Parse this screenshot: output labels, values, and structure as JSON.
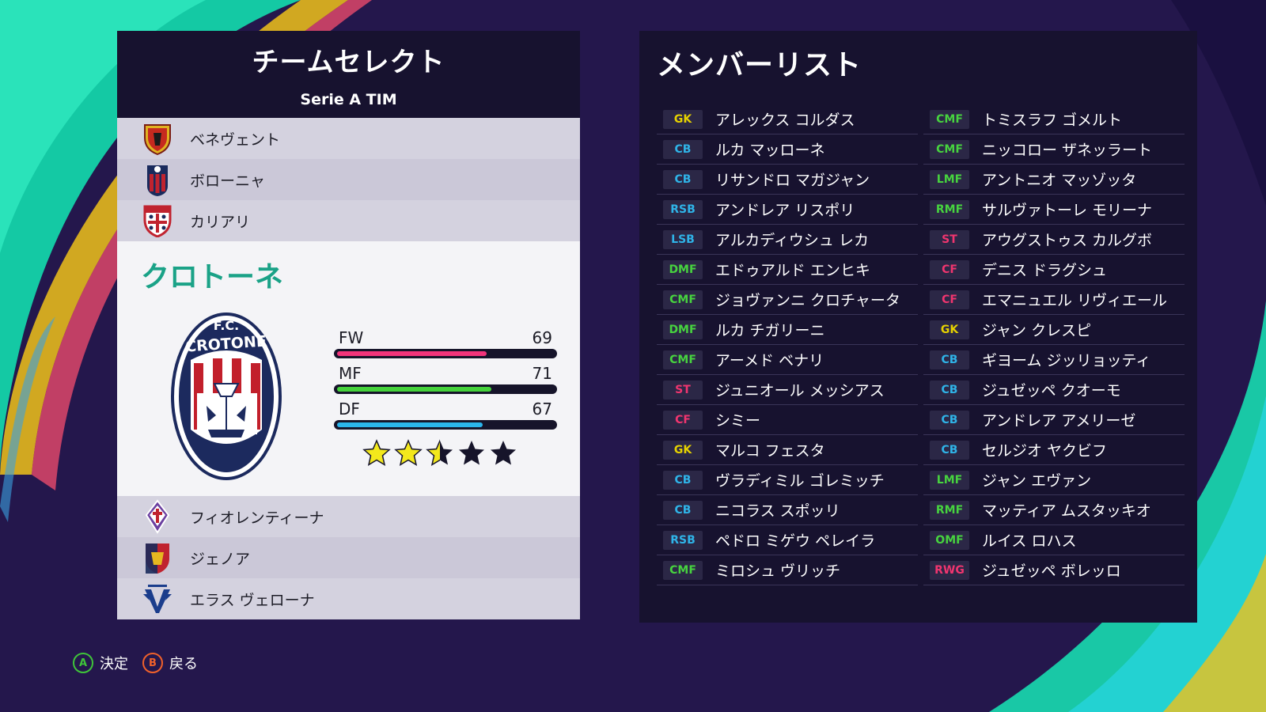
{
  "team_select": {
    "title": "チームセレクト",
    "league": "Serie A TIM",
    "teams_above": [
      {
        "name": "ベネヴェント",
        "crest": "benevento-crest-icon"
      },
      {
        "name": "ボローニャ",
        "crest": "bologna-crest-icon"
      },
      {
        "name": "カリアリ",
        "crest": "cagliari-crest-icon"
      }
    ],
    "selected": {
      "name": "クロトーネ",
      "crest": "crotone-crest-icon",
      "stats": [
        {
          "label": "FW",
          "value": 69,
          "color": "#f2347b"
        },
        {
          "label": "MF",
          "value": 71,
          "color": "#46d23c"
        },
        {
          "label": "DF",
          "value": 67,
          "color": "#2bb5ec"
        }
      ],
      "stars": 2.5,
      "stars_max": 5
    },
    "teams_below": [
      {
        "name": "フィオレンティーナ",
        "crest": "fiorentina-crest-icon"
      },
      {
        "name": "ジェノア",
        "crest": "genoa-crest-icon"
      },
      {
        "name": "エラス ヴェローナ",
        "crest": "verona-crest-icon"
      }
    ]
  },
  "member_list": {
    "title": "メンバーリスト",
    "left": [
      {
        "pos": "GK",
        "name": "アレックス コルダス"
      },
      {
        "pos": "CB",
        "name": "ルカ マッローネ"
      },
      {
        "pos": "CB",
        "name": "リサンドロ マガジャン"
      },
      {
        "pos": "RSB",
        "name": "アンドレア リスポリ"
      },
      {
        "pos": "LSB",
        "name": "アルカディウシュ レカ"
      },
      {
        "pos": "DMF",
        "name": "エドゥアルド エンヒキ"
      },
      {
        "pos": "CMF",
        "name": "ジョヴァンニ クロチャータ"
      },
      {
        "pos": "DMF",
        "name": "ルカ チガリーニ"
      },
      {
        "pos": "CMF",
        "name": "アーメド ベナリ"
      },
      {
        "pos": "ST",
        "name": "ジュニオール メッシアス"
      },
      {
        "pos": "CF",
        "name": "シミー"
      },
      {
        "pos": "GK",
        "name": "マルコ フェスタ"
      },
      {
        "pos": "CB",
        "name": "ヴラディミル ゴレミッチ"
      },
      {
        "pos": "CB",
        "name": "ニコラス スポッリ"
      },
      {
        "pos": "RSB",
        "name": "ペドロ ミゲウ ペレイラ"
      },
      {
        "pos": "CMF",
        "name": "ミロシュ ヴリッチ"
      }
    ],
    "right": [
      {
        "pos": "CMF",
        "name": "トミスラフ ゴメルト"
      },
      {
        "pos": "CMF",
        "name": "ニッコロー ザネッラート"
      },
      {
        "pos": "LMF",
        "name": "アントニオ マッゾッタ"
      },
      {
        "pos": "RMF",
        "name": "サルヴァトーレ モリーナ"
      },
      {
        "pos": "ST",
        "name": "アウグストゥス カルグボ"
      },
      {
        "pos": "CF",
        "name": "デニス ドラグシュ"
      },
      {
        "pos": "CF",
        "name": "エマニュエル リヴィエール"
      },
      {
        "pos": "GK",
        "name": "ジャン クレスピ"
      },
      {
        "pos": "CB",
        "name": "ギヨーム ジッリョッティ"
      },
      {
        "pos": "CB",
        "name": "ジュゼッペ クオーモ"
      },
      {
        "pos": "CB",
        "name": "アンドレア アメリーゼ"
      },
      {
        "pos": "CB",
        "name": "セルジオ ヤクビフ"
      },
      {
        "pos": "LMF",
        "name": "ジャン エヴァン"
      },
      {
        "pos": "RMF",
        "name": "マッティア ムスタッキオ"
      },
      {
        "pos": "OMF",
        "name": "ルイス ロハス"
      },
      {
        "pos": "RWG",
        "name": "ジュゼッペ ボレッロ"
      }
    ]
  },
  "position_colors": {
    "GK": "#e6d200",
    "CB": "#2fb4e8",
    "RSB": "#2fb4e8",
    "LSB": "#2fb4e8",
    "DMF": "#47d33f",
    "CMF": "#47d33f",
    "LMF": "#47d33f",
    "RMF": "#47d33f",
    "OMF": "#47d33f",
    "ST": "#f0356f",
    "CF": "#f0356f",
    "RWG": "#f0356f"
  },
  "footer": {
    "confirm_key": "A",
    "confirm_label": "決定",
    "confirm_color": "#3fc43a",
    "back_key": "B",
    "back_label": "戻る",
    "back_color": "#f0612b"
  }
}
